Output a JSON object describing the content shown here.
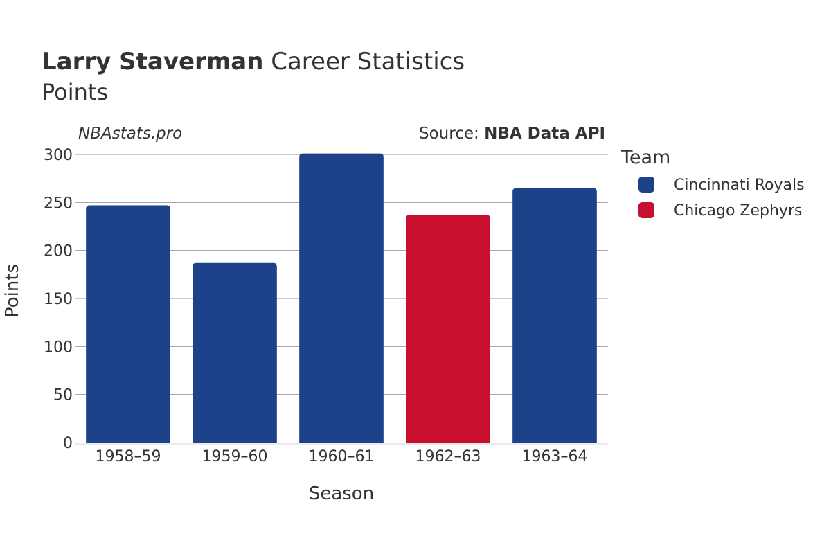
{
  "header": {
    "player": "Larry Staverman",
    "title_rest": " Career Statistics",
    "subtitle": "Points"
  },
  "watermark": "NBAstats.pro",
  "source": {
    "prefix": "Source: ",
    "name": "NBA Data API"
  },
  "legend": {
    "title": "Team",
    "items": [
      {
        "label": "Cincinnati Royals",
        "color": "#1d428a"
      },
      {
        "label": "Chicago Zephyrs",
        "color": "#c8102e"
      }
    ]
  },
  "chart_data": {
    "type": "bar",
    "categories": [
      "1958–59",
      "1959–60",
      "1960–61",
      "1962–63",
      "1963–64"
    ],
    "values": [
      247,
      187,
      301,
      237,
      265
    ],
    "teams": [
      "Cincinnati Royals",
      "Cincinnati Royals",
      "Cincinnati Royals",
      "Chicago Zephyrs",
      "Cincinnati Royals"
    ],
    "xlabel": "Season",
    "ylabel": "Points",
    "ylim": [
      0,
      300
    ],
    "yticks": [
      0,
      50,
      100,
      150,
      200,
      250,
      300
    ],
    "grid": true,
    "legend_position": "right"
  }
}
